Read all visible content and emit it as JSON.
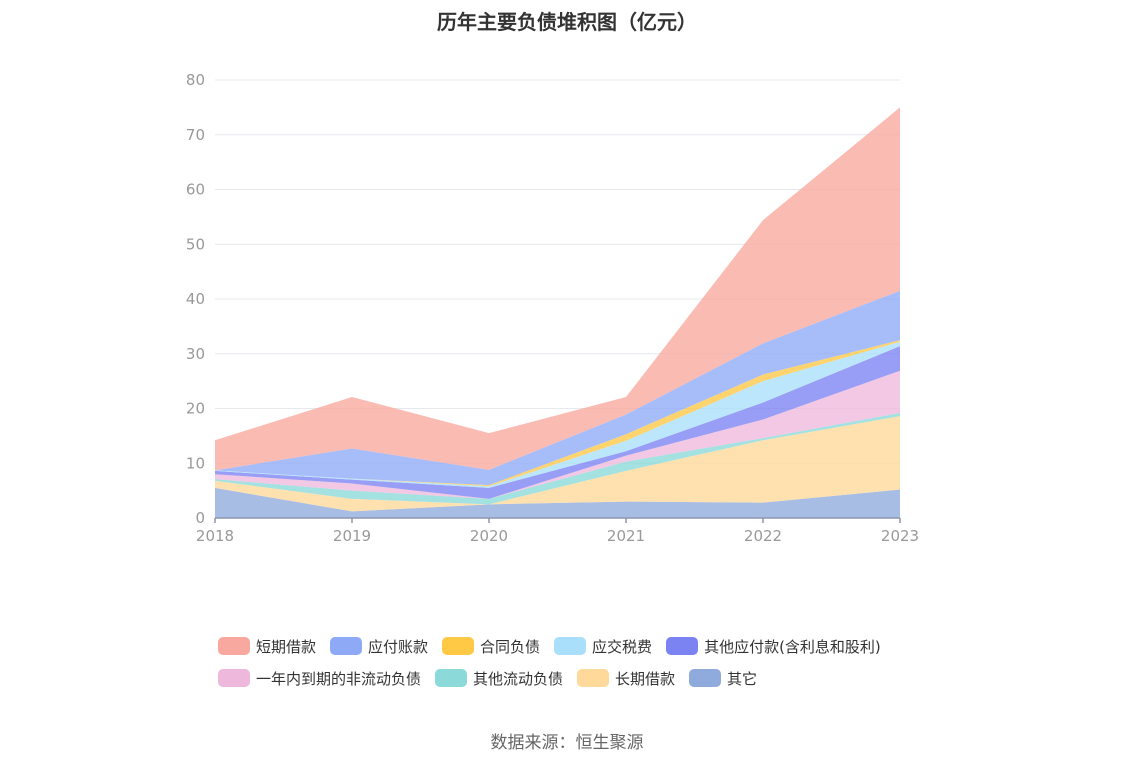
{
  "chart_data": {
    "type": "area",
    "stacked": true,
    "title": "历年主要负债堆积图（亿元）",
    "x": [
      "2018",
      "2019",
      "2020",
      "2021",
      "2022",
      "2023"
    ],
    "ylim": [
      0,
      80
    ],
    "yticks": [
      "0",
      "10",
      "20",
      "30",
      "40",
      "50",
      "60",
      "70",
      "80"
    ],
    "grid": true,
    "legend_position": "bottom",
    "series": [
      {
        "name": "其它",
        "color": "#8FAADC",
        "values": [
          5.5,
          1.2,
          2.5,
          3.0,
          2.8,
          5.2
        ]
      },
      {
        "name": "长期借款",
        "color": "#FFD99A",
        "values": [
          1.3,
          2.3,
          0.0,
          5.6,
          11.4,
          13.4
        ]
      },
      {
        "name": "其他流动负债",
        "color": "#8BD9D9",
        "values": [
          0.3,
          1.5,
          1.0,
          1.7,
          0.4,
          0.6
        ]
      },
      {
        "name": "一年内到期的非流动负债",
        "color": "#EEB8DC",
        "values": [
          0.9,
          1.3,
          0.0,
          1.1,
          3.4,
          7.7
        ]
      },
      {
        "name": "其他应付款(含利息和股利)",
        "color": "#7B83F2",
        "values": [
          0.6,
          0.7,
          2.0,
          0.8,
          3.1,
          4.5
        ]
      },
      {
        "name": "应交税费",
        "color": "#A9DFFA",
        "values": [
          0.1,
          0.2,
          0.3,
          1.9,
          3.9,
          0.8
        ]
      },
      {
        "name": "合同负债",
        "color": "#FFC845",
        "values": [
          0.0,
          0.0,
          0.2,
          1.2,
          1.2,
          0.3
        ]
      },
      {
        "name": "应付账款",
        "color": "#8EAAF7",
        "values": [
          0.0,
          5.5,
          2.8,
          3.6,
          5.7,
          9.0
        ]
      },
      {
        "name": "短期借款",
        "color": "#F8A89E",
        "values": [
          5.5,
          9.4,
          6.7,
          3.2,
          22.5,
          33.5
        ]
      }
    ],
    "legend_order": [
      "短期借款",
      "应付账款",
      "合同负债",
      "应交税费",
      "其他应付款(含利息和股利)",
      "一年内到期的非流动负债",
      "其他流动负债",
      "长期借款",
      "其它"
    ]
  },
  "footer": {
    "source": "数据来源：恒生聚源"
  }
}
